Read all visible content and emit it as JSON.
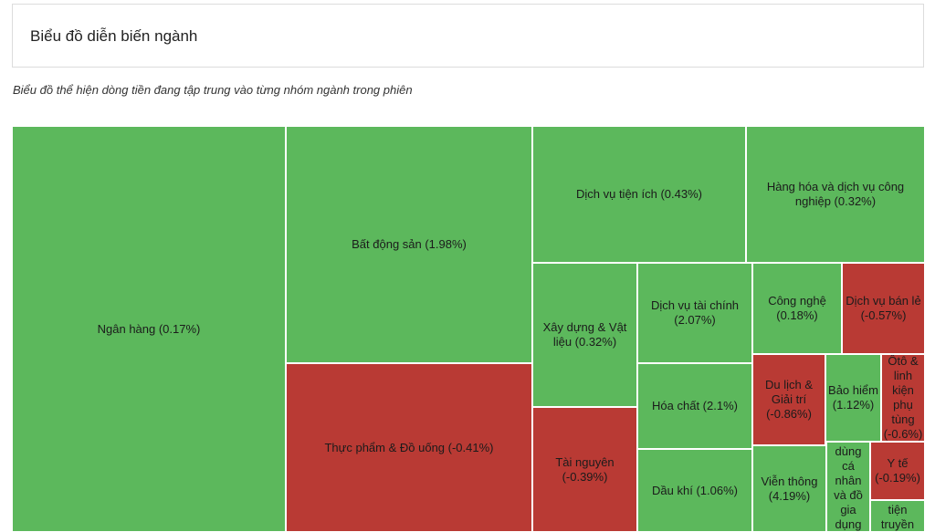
{
  "header": {
    "title": "Biểu đồ diễn biến ngành"
  },
  "description": "Biểu đồ thể hiện dòng tiền đang tập trung vào từng nhóm ngành trong phiên",
  "colors": {
    "positive": "#5cb85c",
    "negative": "#b93a34"
  },
  "chart_data": {
    "type": "treemap",
    "title": "",
    "items": [
      {
        "label": "Ngân hàng (0.17%)",
        "name": "Ngân hàng",
        "change": 0.17
      },
      {
        "label": "Bất động sản (1.98%)",
        "name": "Bất động sản",
        "change": 1.98
      },
      {
        "label": "Thực phẩm & Đồ uống (-0.41%)",
        "name": "Thực phẩm & Đồ uống",
        "change": -0.41
      },
      {
        "label": "Dịch vụ tiện ích (0.43%)",
        "name": "Dịch vụ tiện ích",
        "change": 0.43
      },
      {
        "label": "Hàng hóa và dịch vụ công nghiệp (0.32%)",
        "name": "Hàng hóa và dịch vụ công nghiệp",
        "change": 0.32
      },
      {
        "label": "Xây dựng & Vật liệu (0.32%)",
        "name": "Xây dựng & Vật liệu",
        "change": 0.32
      },
      {
        "label": "Tài nguyên (-0.39%)",
        "name": "Tài nguyên",
        "change": -0.39
      },
      {
        "label": "Dịch vụ tài chính (2.07%)",
        "name": "Dịch vụ tài chính",
        "change": 2.07
      },
      {
        "label": "Hóa chất (2.1%)",
        "name": "Hóa chất",
        "change": 2.1
      },
      {
        "label": "Dầu khí (1.06%)",
        "name": "Dầu khí",
        "change": 1.06
      },
      {
        "label": "Công nghệ (0.18%)",
        "name": "Công nghệ",
        "change": 0.18
      },
      {
        "label": "Dịch vụ bán lẻ (-0.57%)",
        "name": "Dịch vụ bán lẻ",
        "change": -0.57
      },
      {
        "label": "Du lịch & Giải trí (-0.86%)",
        "name": "Du lịch & Giải trí",
        "change": -0.86
      },
      {
        "label": "Bảo hiểm (1.12%)",
        "name": "Bảo hiểm",
        "change": 1.12
      },
      {
        "label": "Ôtô & linh kiện phụ tùng (-0.6%)",
        "name": "Ôtô & linh kiện phụ tùng",
        "change": -0.6
      },
      {
        "label": "Viễn thông (4.19%)",
        "name": "Viễn thông",
        "change": 4.19
      },
      {
        "label": "dùng cá nhân và đồ gia dụng",
        "name": "dùng cá nhân và đồ gia dụng",
        "change": null
      },
      {
        "label": "Y tế (-0.19%)",
        "name": "Y tế",
        "change": -0.19
      },
      {
        "label": "tiện truyền thông",
        "name": "tiện truyền thông",
        "change": null
      }
    ]
  }
}
